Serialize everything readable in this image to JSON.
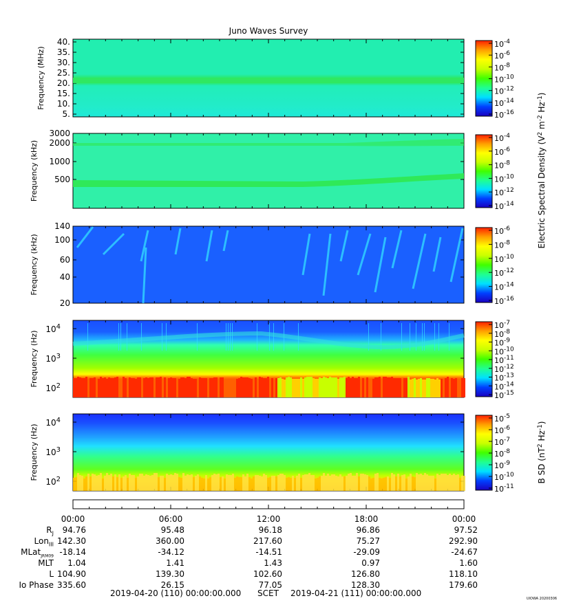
{
  "chart_data": {
    "type": "heatmap",
    "title": "Juno Waves Survey",
    "colors": {
      "rainbow_stops": [
        "#1a00c0",
        "#0040ff",
        "#00e0ff",
        "#20ff90",
        "#40ff00",
        "#c8ff00",
        "#ffff00",
        "#ffa000",
        "#ff2000"
      ],
      "panel1_background": "#1fefb8",
      "panel1_band": "#30e860",
      "panel2_background": "#30f0a8",
      "panel2_band": "#30e850",
      "panel3_background": "#1a60ff",
      "panel3_streak": "#30d0ff",
      "panel4_high": "#1a60ff",
      "panel4_mid": "#30ff60",
      "panel4_low": "#ff2a00",
      "panel5_high": "#1a40ff",
      "panel5_mid": "#40ff40",
      "panel5_low": "#ffd000"
    },
    "panels": [
      {
        "ylabel": "Frequency (MHz)",
        "y_ticks": [
          "40.",
          "35.",
          "30.",
          "25.",
          "20.",
          "15.",
          "10.",
          "5."
        ],
        "colorbar_ticks": [
          {
            "base": "10",
            "exp": "-4"
          },
          {
            "base": "10",
            "exp": "-6"
          },
          {
            "base": "10",
            "exp": "-8"
          },
          {
            "base": "10",
            "exp": "-10"
          },
          {
            "base": "10",
            "exp": "-12"
          },
          {
            "base": "10",
            "exp": "-14"
          },
          {
            "base": "10",
            "exp": "-16"
          }
        ]
      },
      {
        "ylabel": "Frequency (kHz)",
        "y_ticks": [
          "3000",
          "2000",
          "1000",
          "500"
        ],
        "colorbar_ticks": [
          {
            "base": "10",
            "exp": "-4"
          },
          {
            "base": "10",
            "exp": "-6"
          },
          {
            "base": "10",
            "exp": "-8"
          },
          {
            "base": "10",
            "exp": "-10"
          },
          {
            "base": "10",
            "exp": "-12"
          },
          {
            "base": "10",
            "exp": "-14"
          }
        ]
      },
      {
        "ylabel": "Frequency (kHz)",
        "y_ticks": [
          "140",
          "100",
          "60",
          "40",
          "20"
        ],
        "colorbar_ticks": [
          {
            "base": "10",
            "exp": "-6"
          },
          {
            "base": "10",
            "exp": "-8"
          },
          {
            "base": "10",
            "exp": "-10"
          },
          {
            "base": "10",
            "exp": "-12"
          },
          {
            "base": "10",
            "exp": "-14"
          },
          {
            "base": "10",
            "exp": "-16"
          }
        ]
      },
      {
        "ylabel": "Frequency (Hz)",
        "y_ticks": [
          {
            "base": "10",
            "exp": "4"
          },
          {
            "base": "10",
            "exp": "3"
          },
          {
            "base": "10",
            "exp": "2"
          }
        ],
        "colorbar_ticks": [
          {
            "base": "10",
            "exp": "-7"
          },
          {
            "base": "10",
            "exp": "-8"
          },
          {
            "base": "10",
            "exp": "-9"
          },
          {
            "base": "10",
            "exp": "-10"
          },
          {
            "base": "10",
            "exp": "-11"
          },
          {
            "base": "10",
            "exp": "-12"
          },
          {
            "base": "10",
            "exp": "-13"
          },
          {
            "base": "10",
            "exp": "-14"
          },
          {
            "base": "10",
            "exp": "-15"
          }
        ]
      },
      {
        "ylabel": "Frequency (Hz)",
        "y_ticks": [
          {
            "base": "10",
            "exp": "4"
          },
          {
            "base": "10",
            "exp": "3"
          },
          {
            "base": "10",
            "exp": "2"
          }
        ],
        "colorbar_ticks": [
          {
            "base": "10",
            "exp": "-5"
          },
          {
            "base": "10",
            "exp": "-6"
          },
          {
            "base": "10",
            "exp": "-7"
          },
          {
            "base": "10",
            "exp": "-8"
          },
          {
            "base": "10",
            "exp": "-9"
          },
          {
            "base": "10",
            "exp": "-10"
          },
          {
            "base": "10",
            "exp": "-11"
          }
        ]
      }
    ],
    "colorbar_label_e": {
      "main": "Electric Spectral Density (V",
      "sup1": "2",
      "mid": " m",
      "sup2": "-2",
      "mid2": " Hz",
      "sup3": "-1",
      "end": ")"
    },
    "colorbar_label_b": {
      "main": "B SD (nT",
      "sup1": "2",
      "mid": " Hz",
      "sup2": "-1",
      "end": ")"
    },
    "x_ticks": [
      "00:00",
      "06:00",
      "12:00",
      "18:00",
      "00:00"
    ],
    "ephemeris": {
      "rows": [
        {
          "label": "R",
          "sub": "J",
          "values": [
            "94.76",
            "95.48",
            "96.18",
            "96.86",
            "97.52"
          ]
        },
        {
          "label": "Lon",
          "sub": "III",
          "values": [
            "142.30",
            "360.00",
            "217.60",
            "75.27",
            "292.90"
          ]
        },
        {
          "label": "MLat",
          "sub": "JRM09",
          "values": [
            "-18.14",
            "-34.12",
            "-14.51",
            "-29.09",
            "-24.67"
          ]
        },
        {
          "label": "MLT",
          "sub": "",
          "values": [
            "1.04",
            "1.41",
            "1.43",
            "0.97",
            "1.60"
          ]
        },
        {
          "label": "L",
          "sub": "",
          "values": [
            "104.90",
            "139.30",
            "102.60",
            "126.80",
            "118.10"
          ]
        },
        {
          "label": "Io Phase",
          "sub": "",
          "values": [
            "335.60",
            "26.15",
            "77.05",
            "128.30",
            "179.60"
          ]
        }
      ]
    },
    "time_start": "2019-04-20 (110) 00:00:00.000",
    "time_axis_label": "SCET",
    "time_end": "2019-04-21 (111) 00:00:00.000",
    "footer_stamp": "UIOWA 20200306"
  }
}
